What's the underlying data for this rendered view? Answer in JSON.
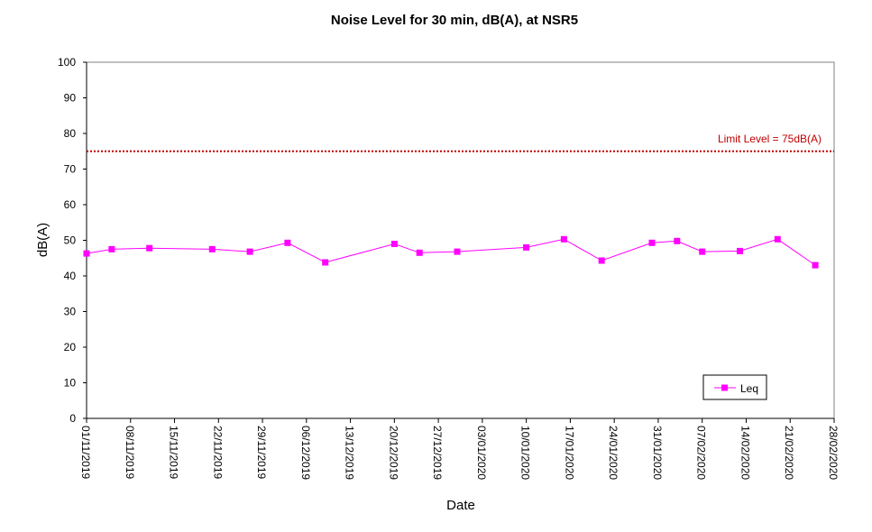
{
  "chart_data": {
    "type": "line",
    "title": "Noise Level for 30 min, dB(A), at NSR5",
    "xlabel": "Date",
    "ylabel": "dB(A)",
    "ylim": [
      0,
      100
    ],
    "yticks": [
      0,
      10,
      20,
      30,
      40,
      50,
      60,
      70,
      80,
      90,
      100
    ],
    "xlim": [
      "2019-11-01",
      "2020-02-28"
    ],
    "xtick_labels": [
      "01/11/2019",
      "08/11/2019",
      "15/11/2019",
      "22/11/2019",
      "29/11/2019",
      "06/12/2019",
      "13/12/2019",
      "20/12/2019",
      "27/12/2019",
      "03/01/2020",
      "10/01/2020",
      "17/01/2020",
      "24/01/2020",
      "31/01/2020",
      "07/02/2020",
      "14/02/2020",
      "21/02/2020",
      "28/02/2020"
    ],
    "grid": false,
    "legend_position": "bottom-right",
    "series": [
      {
        "name": "Leq",
        "color": "#ff00ff",
        "marker": "square",
        "x": [
          "2019-11-01",
          "2019-11-05",
          "2019-11-11",
          "2019-11-21",
          "2019-11-27",
          "2019-12-03",
          "2019-12-09",
          "2019-12-20",
          "2019-12-24",
          "2019-12-30",
          "2020-01-10",
          "2020-01-16",
          "2020-01-22",
          "2020-01-30",
          "2020-02-03",
          "2020-02-07",
          "2020-02-13",
          "2020-02-19",
          "2020-02-25"
        ],
        "y": [
          46.3,
          47.5,
          47.8,
          47.5,
          46.8,
          49.3,
          43.8,
          49.0,
          46.5,
          46.8,
          48.0,
          50.3,
          44.3,
          49.3,
          49.8,
          46.8,
          47.0,
          50.3,
          43.0
        ]
      }
    ],
    "annotations": [
      {
        "text": "Limit Level  = 75dB(A)",
        "y": 75,
        "color": "#c00000",
        "style": "dotted"
      }
    ]
  }
}
